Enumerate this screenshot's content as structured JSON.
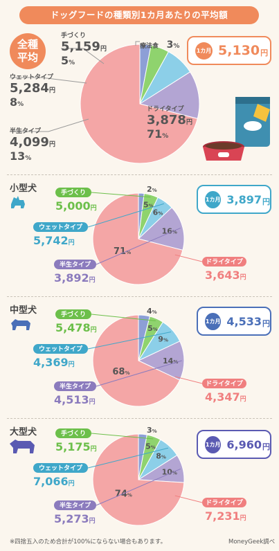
{
  "title": "ドッグフードの種類別1カ月あたりの平均額",
  "monthly_label": "1カ月",
  "yen": "円",
  "pct": "%",
  "colors": {
    "dry": "#f4a6a6",
    "semi": "#b3a5d3",
    "wet": "#8ccfe8",
    "hand": "#8fd36e",
    "therapy": "#8d9fd6",
    "accent": "#f08a5b"
  },
  "all": {
    "badge": [
      "全種",
      "平均"
    ],
    "monthly_value": "5,130",
    "types": [
      {
        "key": "dry",
        "label": "ドライタイプ",
        "price": "3,878",
        "pct": 71
      },
      {
        "key": "semi",
        "label": "半生タイプ",
        "price": "4,099",
        "pct": 13
      },
      {
        "key": "wet",
        "label": "ウェットタイプ",
        "price": "5,284",
        "pct": 8
      },
      {
        "key": "hand",
        "label": "手づくり",
        "price": "5,159",
        "pct": 5
      },
      {
        "key": "therapy",
        "label": "療法食",
        "price": "",
        "pct": 3
      }
    ]
  },
  "small": {
    "title": "小型犬",
    "monthly_value": "3,897",
    "types": [
      {
        "key": "dry",
        "label": "ドライタイプ",
        "price": "3,643",
        "pct": 71
      },
      {
        "key": "semi",
        "label": "半生タイプ",
        "price": "3,892",
        "pct": 16
      },
      {
        "key": "wet",
        "label": "ウェットタイプ",
        "price": "5,742",
        "pct": 6
      },
      {
        "key": "hand",
        "label": "手づくり",
        "price": "5,000",
        "pct": 5
      },
      {
        "key": "therapy",
        "label": "",
        "price": "",
        "pct": 2
      }
    ]
  },
  "medium": {
    "title": "中型犬",
    "monthly_value": "4,533",
    "types": [
      {
        "key": "dry",
        "label": "ドライタイプ",
        "price": "4,347",
        "pct": 68
      },
      {
        "key": "semi",
        "label": "半生タイプ",
        "price": "4,513",
        "pct": 14
      },
      {
        "key": "wet",
        "label": "ウェットタイプ",
        "price": "4,369",
        "pct": 9
      },
      {
        "key": "hand",
        "label": "手づくり",
        "price": "5,478",
        "pct": 5
      },
      {
        "key": "therapy",
        "label": "",
        "price": "",
        "pct": 4
      }
    ]
  },
  "large": {
    "title": "大型犬",
    "monthly_value": "6,960",
    "types": [
      {
        "key": "dry",
        "label": "ドライタイプ",
        "price": "7,231",
        "pct": 74
      },
      {
        "key": "semi",
        "label": "半生タイプ",
        "price": "5,273",
        "pct": 10
      },
      {
        "key": "wet",
        "label": "ウェットタイプ",
        "price": "7,066",
        "pct": 8
      },
      {
        "key": "hand",
        "label": "手づくり",
        "price": "5,175",
        "pct": 5
      },
      {
        "key": "therapy",
        "label": "",
        "price": "",
        "pct": 3
      }
    ]
  },
  "footnote": "※四捨五入のため合計が100%にならない場合もあります。",
  "credit": "MoneyGeek調べ",
  "chart_data": [
    {
      "type": "pie",
      "title": "全種平均",
      "categories": [
        "ドライタイプ",
        "半生タイプ",
        "ウェットタイプ",
        "手づくり",
        "療法食"
      ],
      "values": [
        71,
        13,
        8,
        5,
        3
      ],
      "prices_yen": [
        3878,
        4099,
        5284,
        5159,
        null
      ],
      "monthly_average_yen": 5130
    },
    {
      "type": "pie",
      "title": "小型犬",
      "categories": [
        "ドライタイプ",
        "半生タイプ",
        "ウェットタイプ",
        "手づくり",
        ""
      ],
      "values": [
        71,
        16,
        6,
        5,
        2
      ],
      "prices_yen": [
        3643,
        3892,
        5742,
        5000,
        null
      ],
      "monthly_average_yen": 3897
    },
    {
      "type": "pie",
      "title": "中型犬",
      "categories": [
        "ドライタイプ",
        "半生タイプ",
        "ウェットタイプ",
        "手づくり",
        ""
      ],
      "values": [
        68,
        14,
        9,
        5,
        4
      ],
      "prices_yen": [
        4347,
        4513,
        4369,
        5478,
        null
      ],
      "monthly_average_yen": 4533
    },
    {
      "type": "pie",
      "title": "大型犬",
      "categories": [
        "ドライタイプ",
        "半生タイプ",
        "ウェットタイプ",
        "手づくり",
        ""
      ],
      "values": [
        74,
        10,
        8,
        5,
        3
      ],
      "prices_yen": [
        7231,
        5273,
        7066,
        5175,
        null
      ],
      "monthly_average_yen": 6960
    }
  ]
}
